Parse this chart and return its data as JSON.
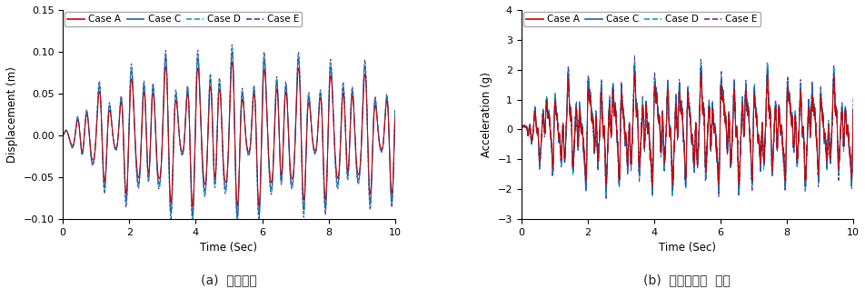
{
  "left_title": "(a)  변위응답",
  "right_title": "(b)  가속도응답  비교",
  "left_ylabel": "Displacement (m)",
  "right_ylabel": "Acceleration (g)",
  "xlabel": "Time (Sec)",
  "xlim": [
    0,
    10
  ],
  "left_ylim": [
    -0.1,
    0.15
  ],
  "right_ylim": [
    -3,
    4
  ],
  "left_yticks": [
    -0.1,
    -0.05,
    0,
    0.05,
    0.1,
    0.15
  ],
  "right_yticks": [
    -3,
    -2,
    -1,
    0,
    1,
    2,
    3,
    4
  ],
  "xticks": [
    0,
    2,
    4,
    6,
    8,
    10
  ],
  "legend_labels": [
    "Case A",
    "Case C",
    "Case D",
    "Case E"
  ],
  "colors": {
    "A": "#cc0000",
    "C": "#2060b0",
    "D": "#00aaaa",
    "E": "#6030a0"
  },
  "linestyles": {
    "A": "solid",
    "C": "solid",
    "D": "dashed",
    "E": "dashed"
  },
  "linewidths": {
    "A": 0.7,
    "C": 0.7,
    "D": 0.7,
    "E": 0.7
  },
  "n_points": 4000,
  "duration": 10.0,
  "background_color": "#ffffff"
}
